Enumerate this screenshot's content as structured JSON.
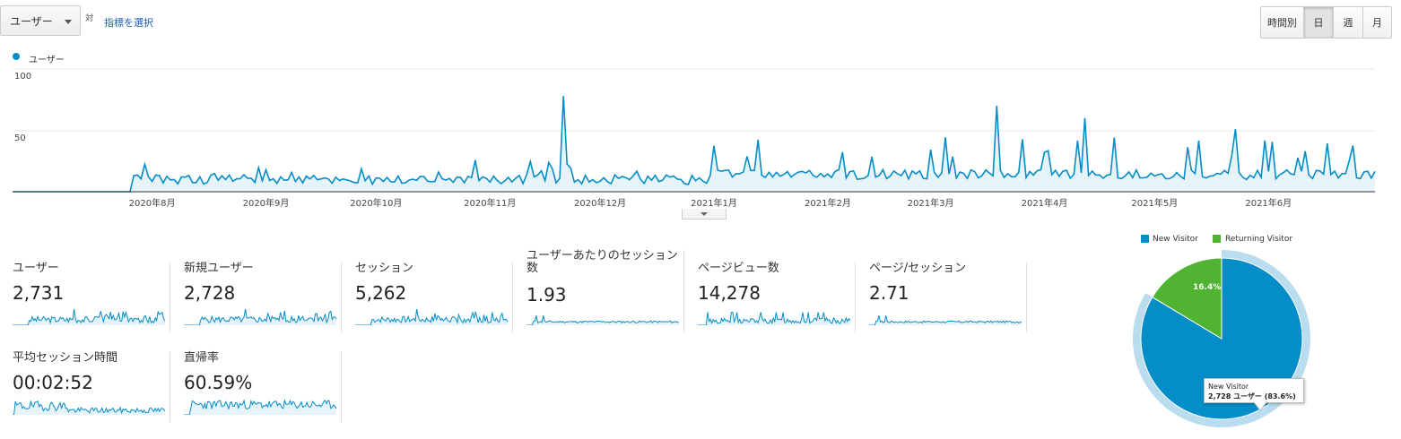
{
  "toolbar": {
    "metric_select": "ユーザー",
    "vs_label": "対",
    "select_metric_link": "指標を選択",
    "granularity": [
      "時間別",
      "日",
      "週",
      "月"
    ],
    "granularity_active": "日"
  },
  "chart": {
    "legend_label": "ユーザー",
    "series_color": "#058dc7",
    "y_ticks": [
      "100",
      "50"
    ],
    "x_labels": [
      "2020年8月",
      "2020年9月",
      "2020年10月",
      "2020年11月",
      "2020年12月",
      "2021年1月",
      "2021年2月",
      "2021年3月",
      "2021年4月",
      "2021年5月",
      "2021年6月"
    ]
  },
  "chart_data": {
    "type": "area",
    "ylim": [
      0,
      100
    ],
    "x_start": "2020-06-24",
    "x_end": "2021-06-30",
    "series": [
      {
        "name": "ユーザー",
        "color": "#058dc7"
      }
    ],
    "peaks": [
      {
        "date": "2020-11-21",
        "value": 78
      },
      {
        "date": "2021-03-19",
        "value": 70
      },
      {
        "date": "2021-04-12",
        "value": 60
      },
      {
        "date": "2021-05-23",
        "value": 51
      }
    ]
  },
  "metrics": [
    {
      "label": "ユーザー",
      "value": "2,731"
    },
    {
      "label": "新規ユーザー",
      "value": "2,728"
    },
    {
      "label": "セッション",
      "value": "5,262"
    },
    {
      "label": "ユーザーあたりのセッション数",
      "value": "1.93"
    },
    {
      "label": "ページビュー数",
      "value": "14,278"
    },
    {
      "label": "ページ/セッション",
      "value": "2.71"
    },
    {
      "label": "平均セッション時間",
      "value": "00:02:52"
    },
    {
      "label": "直帰率",
      "value": "60.59%"
    }
  ],
  "pie": {
    "legend": [
      {
        "label": "New Visitor",
        "color": "#058dc7"
      },
      {
        "label": "Returning Visitor",
        "color": "#50b432"
      }
    ],
    "slices": [
      {
        "label": "New Visitor",
        "percent": 83.6,
        "color": "#058dc7"
      },
      {
        "label": "Returning Visitor",
        "percent": 16.4,
        "color": "#50b432"
      }
    ],
    "returning_label": "16.4%",
    "tooltip_title": "New Visitor",
    "tooltip_value": "2,728 ユーザー (83.6%)"
  }
}
